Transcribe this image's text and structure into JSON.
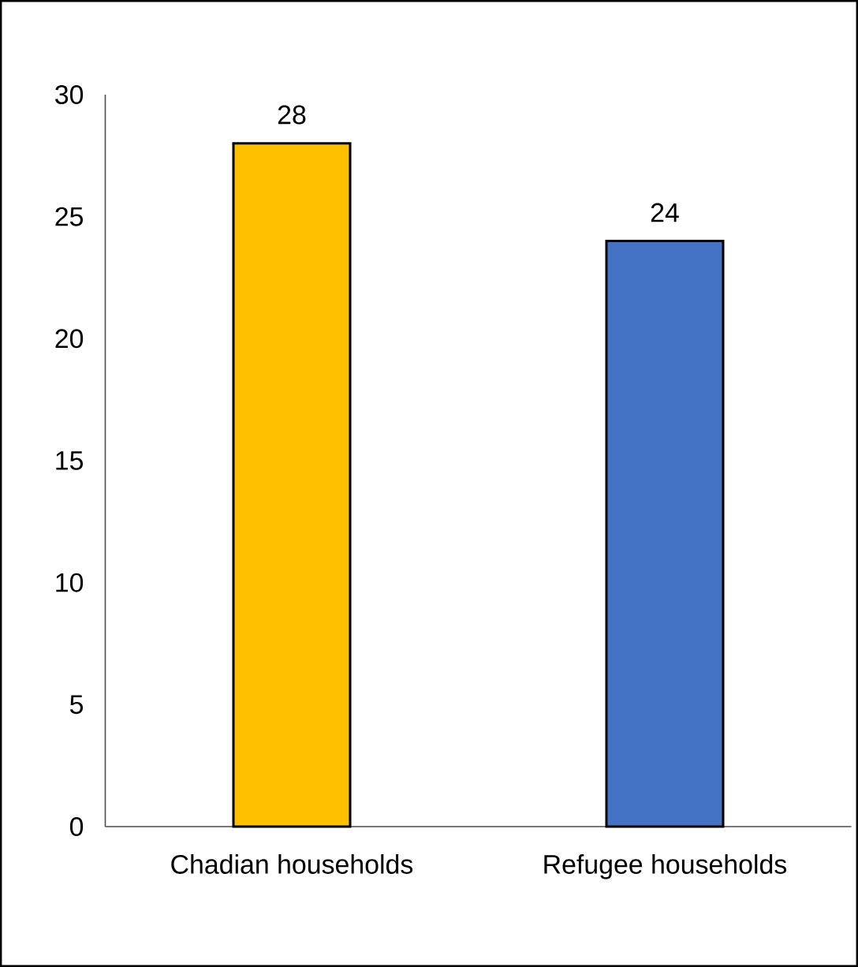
{
  "chart_data": {
    "type": "bar",
    "categories": [
      "Chadian households",
      "Refugee households"
    ],
    "values": [
      28,
      24
    ],
    "colors": [
      "#ffc000",
      "#4472c4"
    ],
    "ylim": [
      0,
      30
    ],
    "yticks": [
      0,
      5,
      10,
      15,
      20,
      25,
      30
    ],
    "data_labels": true
  }
}
